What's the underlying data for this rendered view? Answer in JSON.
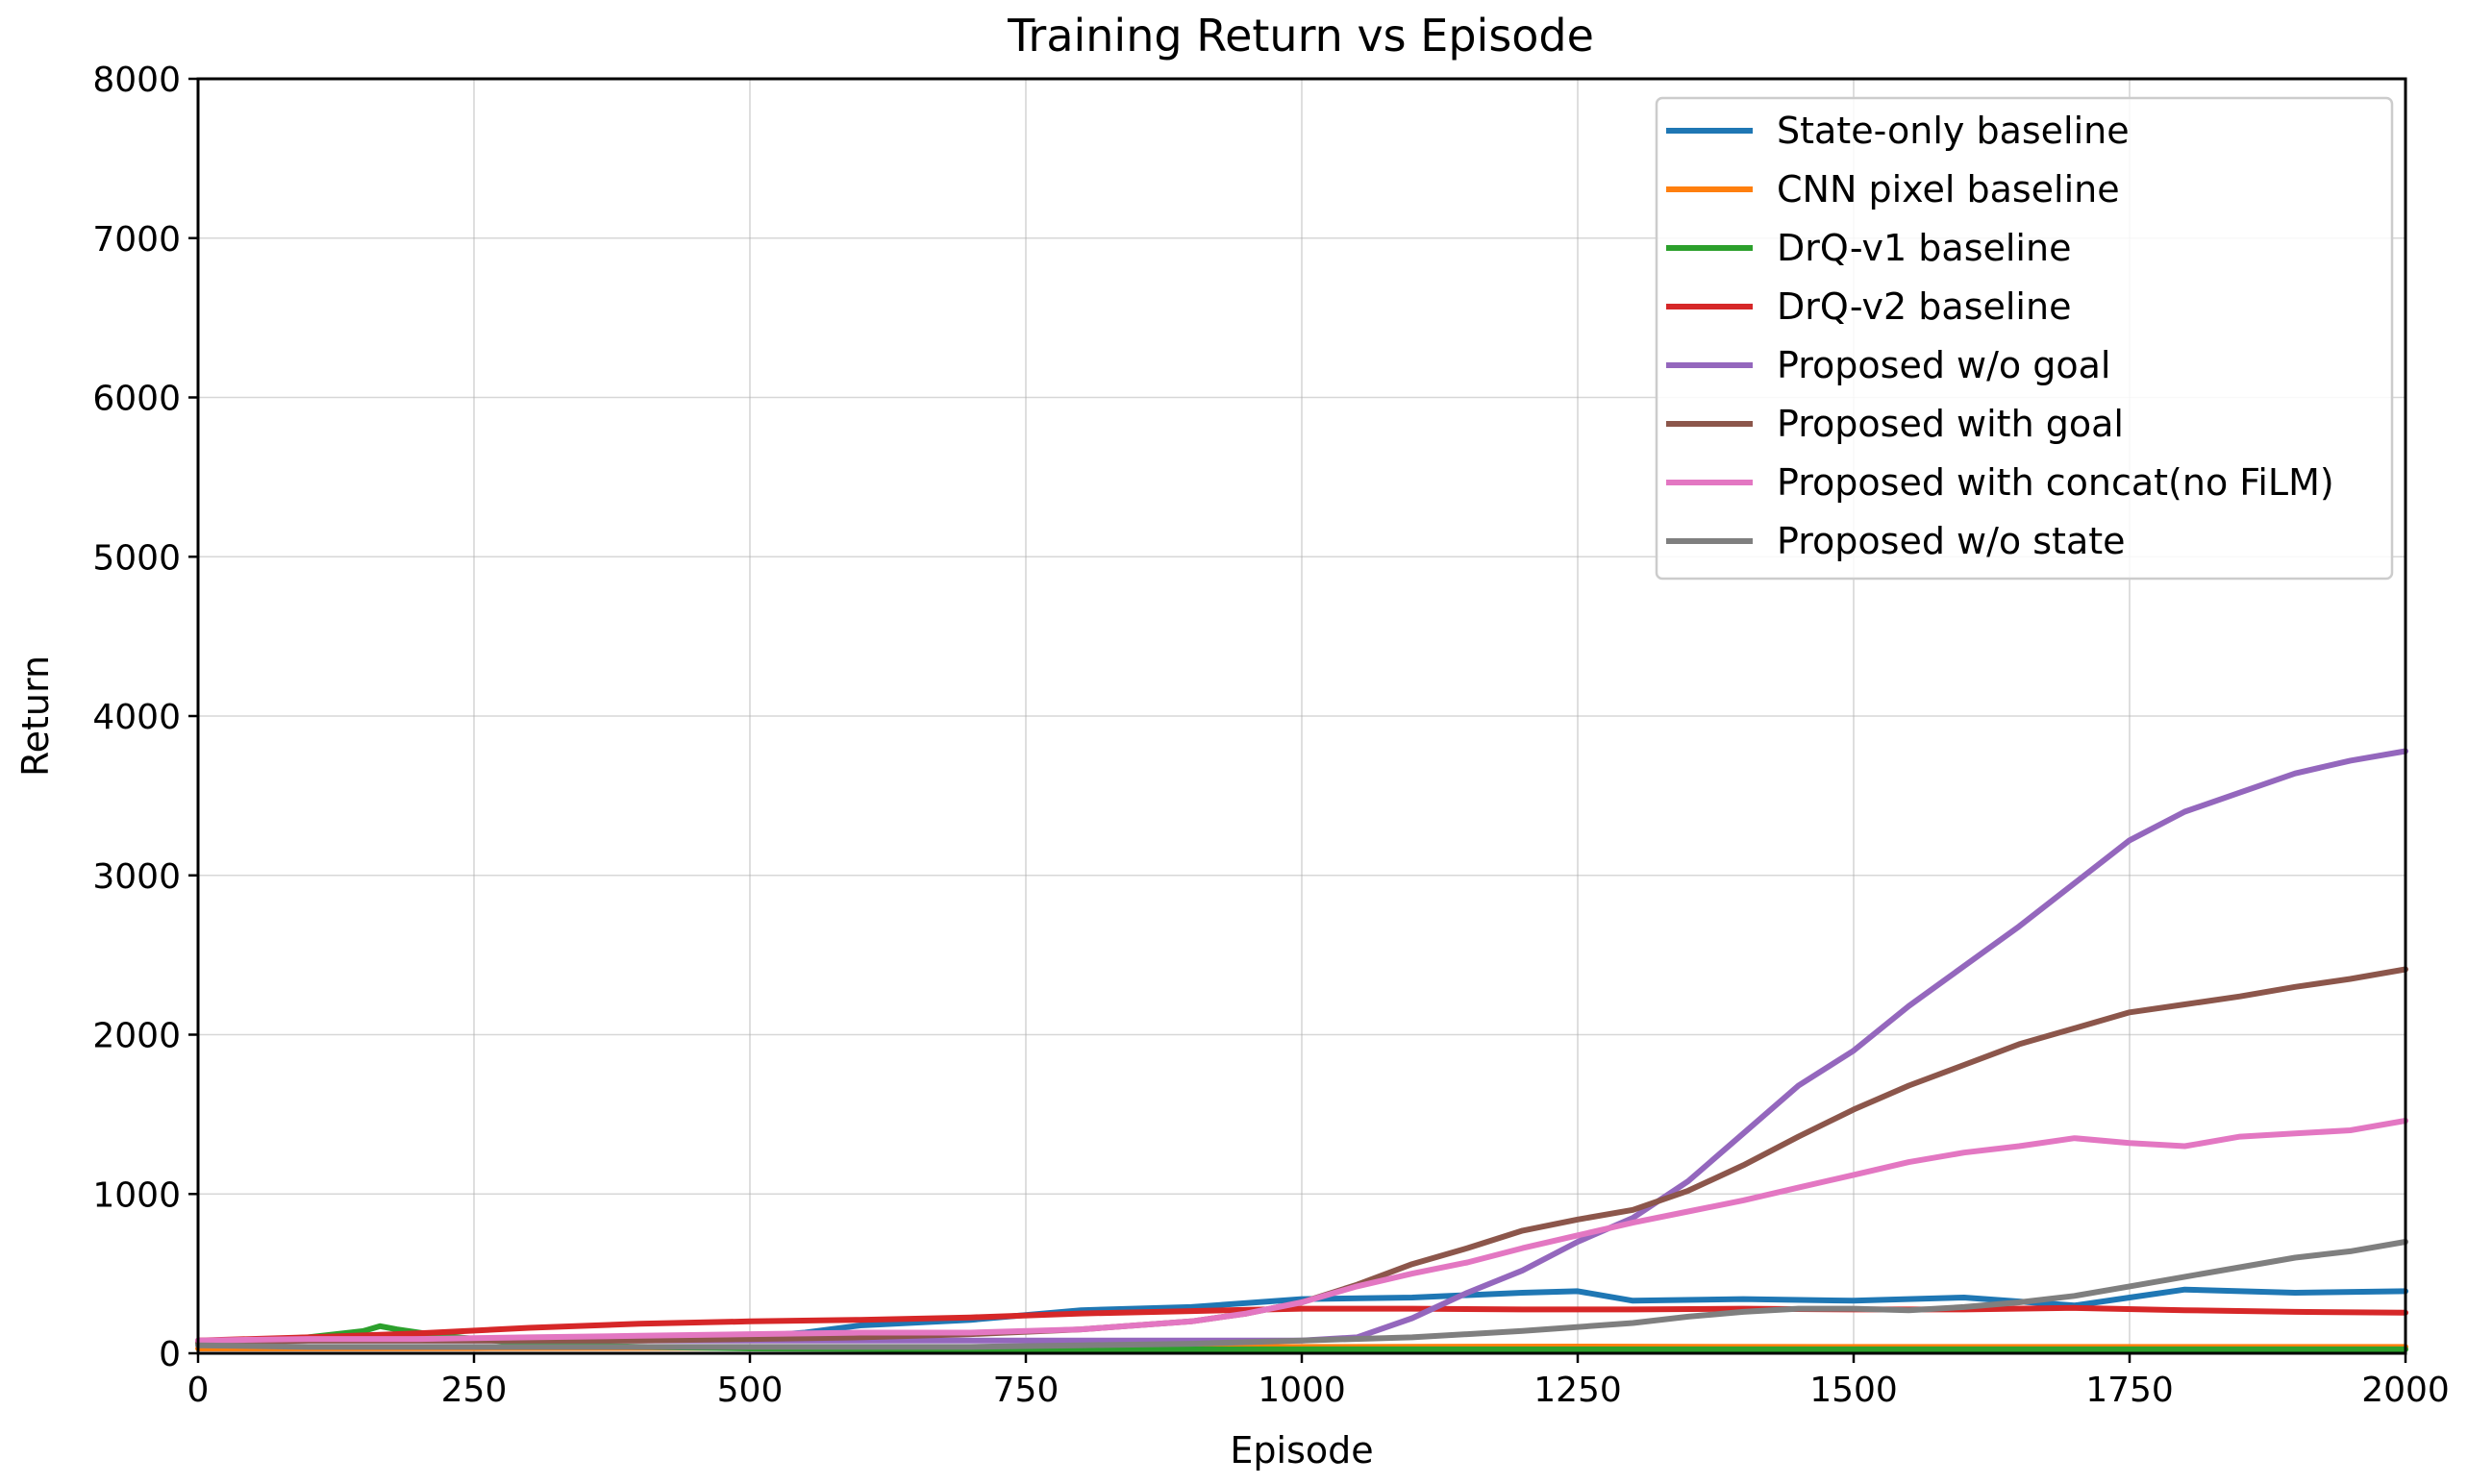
{
  "chart_data": {
    "type": "line",
    "title": "Training Return vs Episode",
    "xlabel": "Episode",
    "ylabel": "Return",
    "xlim": [
      0,
      2000
    ],
    "ylim": [
      0,
      8000
    ],
    "xticks": [
      0,
      250,
      500,
      750,
      1000,
      1250,
      1500,
      1750,
      2000
    ],
    "yticks": [
      0,
      1000,
      2000,
      3000,
      4000,
      5000,
      6000,
      7000,
      8000
    ],
    "grid": true,
    "legend_position": "top-right",
    "series": [
      {
        "name": "State-only baseline",
        "color": "#1f77b4",
        "x": [
          0,
          100,
          200,
          300,
          400,
          500,
          550,
          600,
          700,
          800,
          900,
          1000,
          1100,
          1200,
          1250,
          1300,
          1400,
          1500,
          1600,
          1700,
          1750,
          1800,
          1900,
          2000
        ],
        "y": [
          70,
          90,
          90,
          95,
          100,
          105,
          130,
          175,
          210,
          270,
          290,
          340,
          350,
          380,
          390,
          330,
          340,
          330,
          350,
          300,
          350,
          400,
          380,
          390
        ]
      },
      {
        "name": "CNN pixel baseline",
        "color": "#ff7f0e",
        "x": [
          0,
          250,
          500,
          750,
          1000,
          1250,
          1500,
          1750,
          2000
        ],
        "y": [
          30,
          32,
          35,
          38,
          40,
          42,
          40,
          40,
          40
        ]
      },
      {
        "name": "DrQ-v1 baseline",
        "color": "#2ca02c",
        "x": [
          0,
          100,
          150,
          165,
          180,
          220,
          300,
          400,
          500,
          750,
          1000,
          1250,
          1500,
          1750,
          2000
        ],
        "y": [
          60,
          100,
          140,
          170,
          150,
          110,
          60,
          40,
          30,
          25,
          25,
          25,
          25,
          25,
          25
        ]
      },
      {
        "name": "DrQ-v2 baseline",
        "color": "#d62728",
        "x": [
          0,
          100,
          200,
          300,
          400,
          500,
          600,
          700,
          800,
          900,
          1000,
          1100,
          1200,
          1300,
          1400,
          1500,
          1600,
          1700,
          1800,
          1900,
          2000
        ],
        "y": [
          80,
          100,
          125,
          160,
          185,
          200,
          210,
          225,
          250,
          265,
          280,
          280,
          275,
          275,
          280,
          275,
          275,
          285,
          270,
          260,
          255
        ]
      },
      {
        "name": "Proposed w/o goal",
        "color": "#9467bd",
        "x": [
          0,
          100,
          200,
          300,
          400,
          500,
          700,
          900,
          1000,
          1050,
          1100,
          1150,
          1200,
          1250,
          1300,
          1350,
          1400,
          1450,
          1500,
          1550,
          1600,
          1650,
          1700,
          1750,
          1800,
          1850,
          1900,
          1950,
          2000
        ],
        "y": [
          70,
          80,
          80,
          80,
          80,
          80,
          80,
          80,
          80,
          100,
          220,
          380,
          520,
          700,
          850,
          1080,
          1380,
          1680,
          1900,
          2180,
          2430,
          2680,
          2950,
          3220,
          3400,
          3520,
          3640,
          3720,
          3780
        ]
      },
      {
        "name": "Proposed with goal",
        "color": "#8c564b",
        "x": [
          0,
          100,
          200,
          300,
          400,
          500,
          600,
          700,
          800,
          900,
          950,
          1000,
          1050,
          1100,
          1150,
          1200,
          1250,
          1300,
          1350,
          1400,
          1450,
          1500,
          1550,
          1600,
          1650,
          1700,
          1750,
          1800,
          1850,
          1900,
          1950,
          2000
        ],
        "y": [
          70,
          80,
          80,
          80,
          80,
          90,
          100,
          120,
          150,
          200,
          250,
          320,
          430,
          560,
          660,
          770,
          840,
          900,
          1020,
          1180,
          1360,
          1530,
          1680,
          1810,
          1940,
          2040,
          2140,
          2190,
          2240,
          2300,
          2350,
          2410
        ]
      },
      {
        "name": "Proposed with concat(no FiLM)",
        "color": "#e377c2",
        "x": [
          0,
          100,
          200,
          300,
          400,
          500,
          600,
          700,
          800,
          900,
          950,
          1000,
          1050,
          1100,
          1150,
          1200,
          1250,
          1300,
          1350,
          1400,
          1450,
          1500,
          1550,
          1600,
          1650,
          1700,
          1750,
          1800,
          1850,
          1900,
          1950,
          2000
        ],
        "y": [
          80,
          90,
          90,
          100,
          110,
          120,
          130,
          130,
          150,
          200,
          250,
          320,
          420,
          500,
          570,
          660,
          740,
          820,
          890,
          960,
          1040,
          1120,
          1200,
          1260,
          1300,
          1350,
          1320,
          1300,
          1360,
          1380,
          1400,
          1460
        ]
      },
      {
        "name": "Proposed w/o state",
        "color": "#7f7f7f",
        "x": [
          0,
          100,
          200,
          300,
          400,
          500,
          600,
          700,
          800,
          900,
          1000,
          1100,
          1200,
          1300,
          1350,
          1400,
          1450,
          1500,
          1550,
          1600,
          1650,
          1700,
          1750,
          1800,
          1850,
          1900,
          1950,
          2000
        ],
        "y": [
          50,
          40,
          40,
          40,
          40,
          40,
          40,
          40,
          50,
          60,
          80,
          100,
          140,
          190,
          230,
          260,
          280,
          280,
          270,
          290,
          320,
          360,
          420,
          480,
          540,
          600,
          640,
          700
        ]
      }
    ]
  }
}
